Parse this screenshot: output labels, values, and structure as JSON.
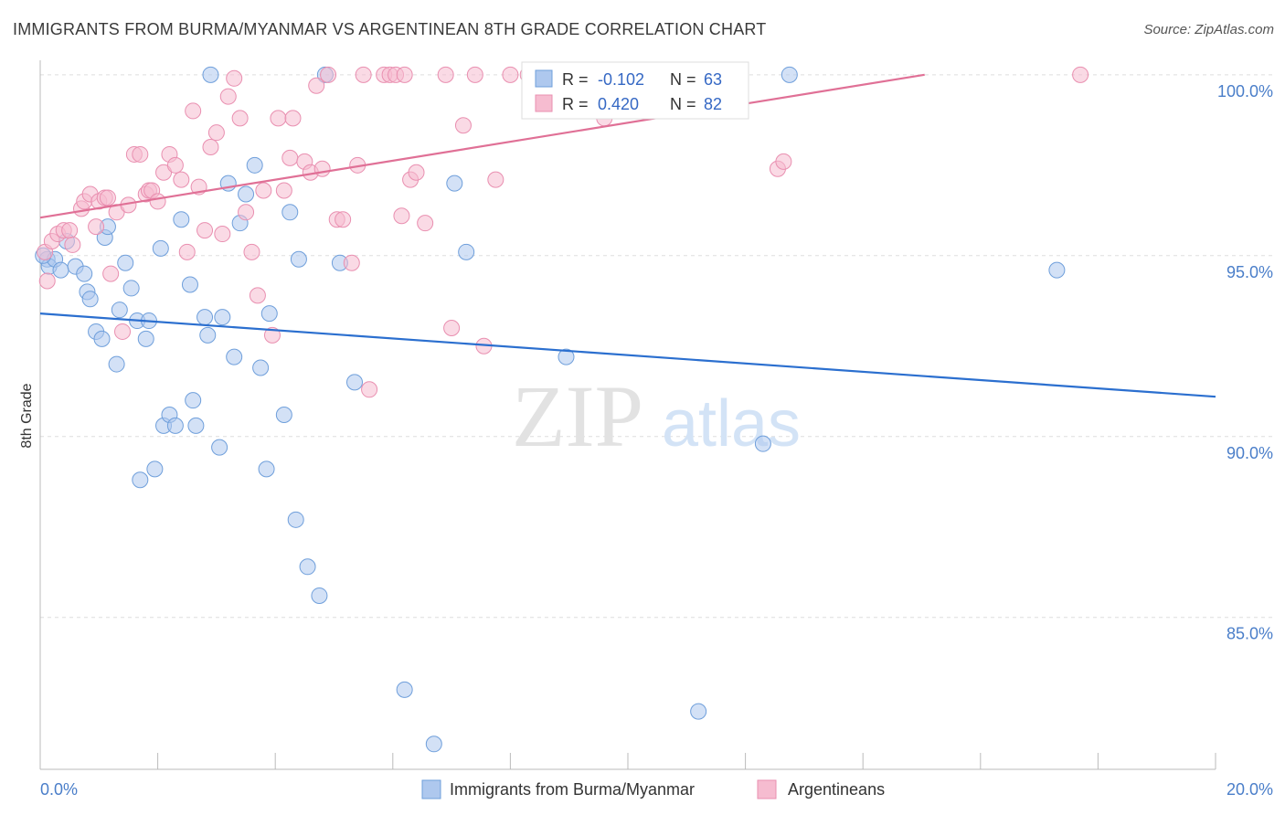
{
  "header": {
    "title": "IMMIGRANTS FROM BURMA/MYANMAR VS ARGENTINEAN 8TH GRADE CORRELATION CHART",
    "source": "Source: ZipAtlas.com"
  },
  "watermark": {
    "zip": "ZIP",
    "atlas": "atlas"
  },
  "colors": {
    "blue_fill": "#aec8ee",
    "blue_stroke": "#6f9fdb",
    "blue_line": "#2b6fcf",
    "pink_fill": "#f6bcd0",
    "pink_stroke": "#e98fb0",
    "pink_line": "#e07096",
    "axis_text": "#4a7ec9",
    "grid": "#dddddd"
  },
  "legend": {
    "r_label": "R =",
    "n_label": "N =",
    "rows": [
      {
        "r": "-0.102",
        "n": "63"
      },
      {
        "r": "0.420",
        "n": "82"
      }
    ]
  },
  "chart_data": {
    "type": "scatter",
    "title": "IMMIGRANTS FROM BURMA/MYANMAR VS ARGENTINEAN 8TH GRADE CORRELATION CHART",
    "xlabel": "",
    "ylabel": "8th Grade",
    "xlim": [
      0,
      20
    ],
    "ylim": [
      80.8,
      100.4
    ],
    "x_tick_labels": [
      "0.0%",
      "20.0%"
    ],
    "y_tick_labels": [
      "100.0%",
      "95.0%",
      "90.0%",
      "85.0%"
    ],
    "y_ticks": [
      100,
      95,
      90,
      85
    ],
    "grid": true,
    "legend_position": "bottom",
    "series": [
      {
        "name": "Immigrants from Burma/Myanmar",
        "color": "#aec8ee",
        "trend": {
          "x": [
            0,
            20
          ],
          "y": [
            93.4,
            91.1
          ]
        },
        "points": [
          [
            0.12,
            94.9
          ],
          [
            0.15,
            94.7
          ],
          [
            0.25,
            94.9
          ],
          [
            0.35,
            94.6
          ],
          [
            0.45,
            95.4
          ],
          [
            0.6,
            94.7
          ],
          [
            0.75,
            94.5
          ],
          [
            0.8,
            94.0
          ],
          [
            0.85,
            93.8
          ],
          [
            0.95,
            92.9
          ],
          [
            1.05,
            92.7
          ],
          [
            1.1,
            95.5
          ],
          [
            1.15,
            95.8
          ],
          [
            1.3,
            92.0
          ],
          [
            1.35,
            93.5
          ],
          [
            1.45,
            94.8
          ],
          [
            1.55,
            94.1
          ],
          [
            1.65,
            93.2
          ],
          [
            1.7,
            88.8
          ],
          [
            1.8,
            92.7
          ],
          [
            1.85,
            93.2
          ],
          [
            1.95,
            89.1
          ],
          [
            2.05,
            95.2
          ],
          [
            2.1,
            90.3
          ],
          [
            2.2,
            90.6
          ],
          [
            2.3,
            90.3
          ],
          [
            2.4,
            96.0
          ],
          [
            2.55,
            94.2
          ],
          [
            2.6,
            91.0
          ],
          [
            2.65,
            90.3
          ],
          [
            2.8,
            93.3
          ],
          [
            2.85,
            92.8
          ],
          [
            2.9,
            100.0
          ],
          [
            3.05,
            89.7
          ],
          [
            3.1,
            93.3
          ],
          [
            3.2,
            97.0
          ],
          [
            3.3,
            92.2
          ],
          [
            3.4,
            95.9
          ],
          [
            3.5,
            96.7
          ],
          [
            3.65,
            97.5
          ],
          [
            3.75,
            91.9
          ],
          [
            3.85,
            89.1
          ],
          [
            3.9,
            93.4
          ],
          [
            4.15,
            90.6
          ],
          [
            4.25,
            96.2
          ],
          [
            4.35,
            87.7
          ],
          [
            4.4,
            94.9
          ],
          [
            4.55,
            86.4
          ],
          [
            4.75,
            85.6
          ],
          [
            4.85,
            100.0
          ],
          [
            5.1,
            94.8
          ],
          [
            5.35,
            91.5
          ],
          [
            6.2,
            83.0
          ],
          [
            6.7,
            81.5
          ],
          [
            7.05,
            97.0
          ],
          [
            7.25,
            95.1
          ],
          [
            8.95,
            92.2
          ],
          [
            9.8,
            100.0
          ],
          [
            11.2,
            82.4
          ],
          [
            12.3,
            89.8
          ],
          [
            12.75,
            100.0
          ],
          [
            17.3,
            94.6
          ],
          [
            0.05,
            95.0
          ]
        ]
      },
      {
        "name": "Argentineans",
        "color": "#f6bcd0",
        "trend": {
          "x": [
            0,
            15.05
          ],
          "y": [
            96.05,
            100.0
          ]
        },
        "points": [
          [
            0.08,
            95.1
          ],
          [
            0.12,
            94.3
          ],
          [
            0.2,
            95.4
          ],
          [
            0.3,
            95.6
          ],
          [
            0.4,
            95.7
          ],
          [
            0.5,
            95.7
          ],
          [
            0.55,
            95.3
          ],
          [
            0.7,
            96.3
          ],
          [
            0.75,
            96.5
          ],
          [
            0.85,
            96.7
          ],
          [
            0.95,
            95.8
          ],
          [
            1.0,
            96.5
          ],
          [
            1.1,
            96.6
          ],
          [
            1.15,
            96.6
          ],
          [
            1.2,
            94.5
          ],
          [
            1.3,
            96.2
          ],
          [
            1.4,
            92.9
          ],
          [
            1.5,
            96.4
          ],
          [
            1.6,
            97.8
          ],
          [
            1.7,
            97.8
          ],
          [
            1.8,
            96.7
          ],
          [
            1.85,
            96.8
          ],
          [
            1.9,
            96.8
          ],
          [
            2.0,
            96.5
          ],
          [
            2.1,
            97.3
          ],
          [
            2.2,
            97.8
          ],
          [
            2.3,
            97.5
          ],
          [
            2.4,
            97.1
          ],
          [
            2.5,
            95.1
          ],
          [
            2.6,
            99.0
          ],
          [
            2.7,
            96.9
          ],
          [
            2.8,
            95.7
          ],
          [
            2.9,
            98.0
          ],
          [
            3.0,
            98.4
          ],
          [
            3.1,
            95.6
          ],
          [
            3.2,
            99.4
          ],
          [
            3.3,
            99.9
          ],
          [
            3.4,
            98.8
          ],
          [
            3.5,
            96.2
          ],
          [
            3.6,
            95.1
          ],
          [
            3.7,
            93.9
          ],
          [
            3.8,
            96.8
          ],
          [
            3.95,
            92.8
          ],
          [
            4.05,
            98.8
          ],
          [
            4.15,
            96.8
          ],
          [
            4.25,
            97.7
          ],
          [
            4.3,
            98.8
          ],
          [
            4.5,
            97.6
          ],
          [
            4.6,
            97.3
          ],
          [
            4.7,
            99.7
          ],
          [
            4.8,
            97.4
          ],
          [
            4.9,
            100.0
          ],
          [
            5.05,
            96.0
          ],
          [
            5.15,
            96.0
          ],
          [
            5.3,
            94.8
          ],
          [
            5.4,
            97.5
          ],
          [
            5.5,
            100.0
          ],
          [
            5.6,
            91.3
          ],
          [
            5.85,
            100.0
          ],
          [
            5.95,
            100.0
          ],
          [
            6.05,
            100.0
          ],
          [
            6.15,
            96.1
          ],
          [
            6.2,
            100.0
          ],
          [
            6.3,
            97.1
          ],
          [
            6.4,
            97.3
          ],
          [
            6.55,
            95.9
          ],
          [
            6.9,
            100.0
          ],
          [
            7.0,
            93.0
          ],
          [
            7.2,
            98.6
          ],
          [
            7.4,
            100.0
          ],
          [
            7.55,
            92.5
          ],
          [
            7.75,
            97.1
          ],
          [
            8.0,
            100.0
          ],
          [
            8.3,
            100.0
          ],
          [
            8.6,
            100.0
          ],
          [
            8.75,
            100.0
          ],
          [
            9.3,
            100.0
          ],
          [
            9.6,
            98.8
          ],
          [
            10.05,
            100.0
          ],
          [
            12.55,
            97.4
          ],
          [
            12.65,
            97.6
          ],
          [
            17.7,
            100.0
          ]
        ]
      }
    ]
  }
}
